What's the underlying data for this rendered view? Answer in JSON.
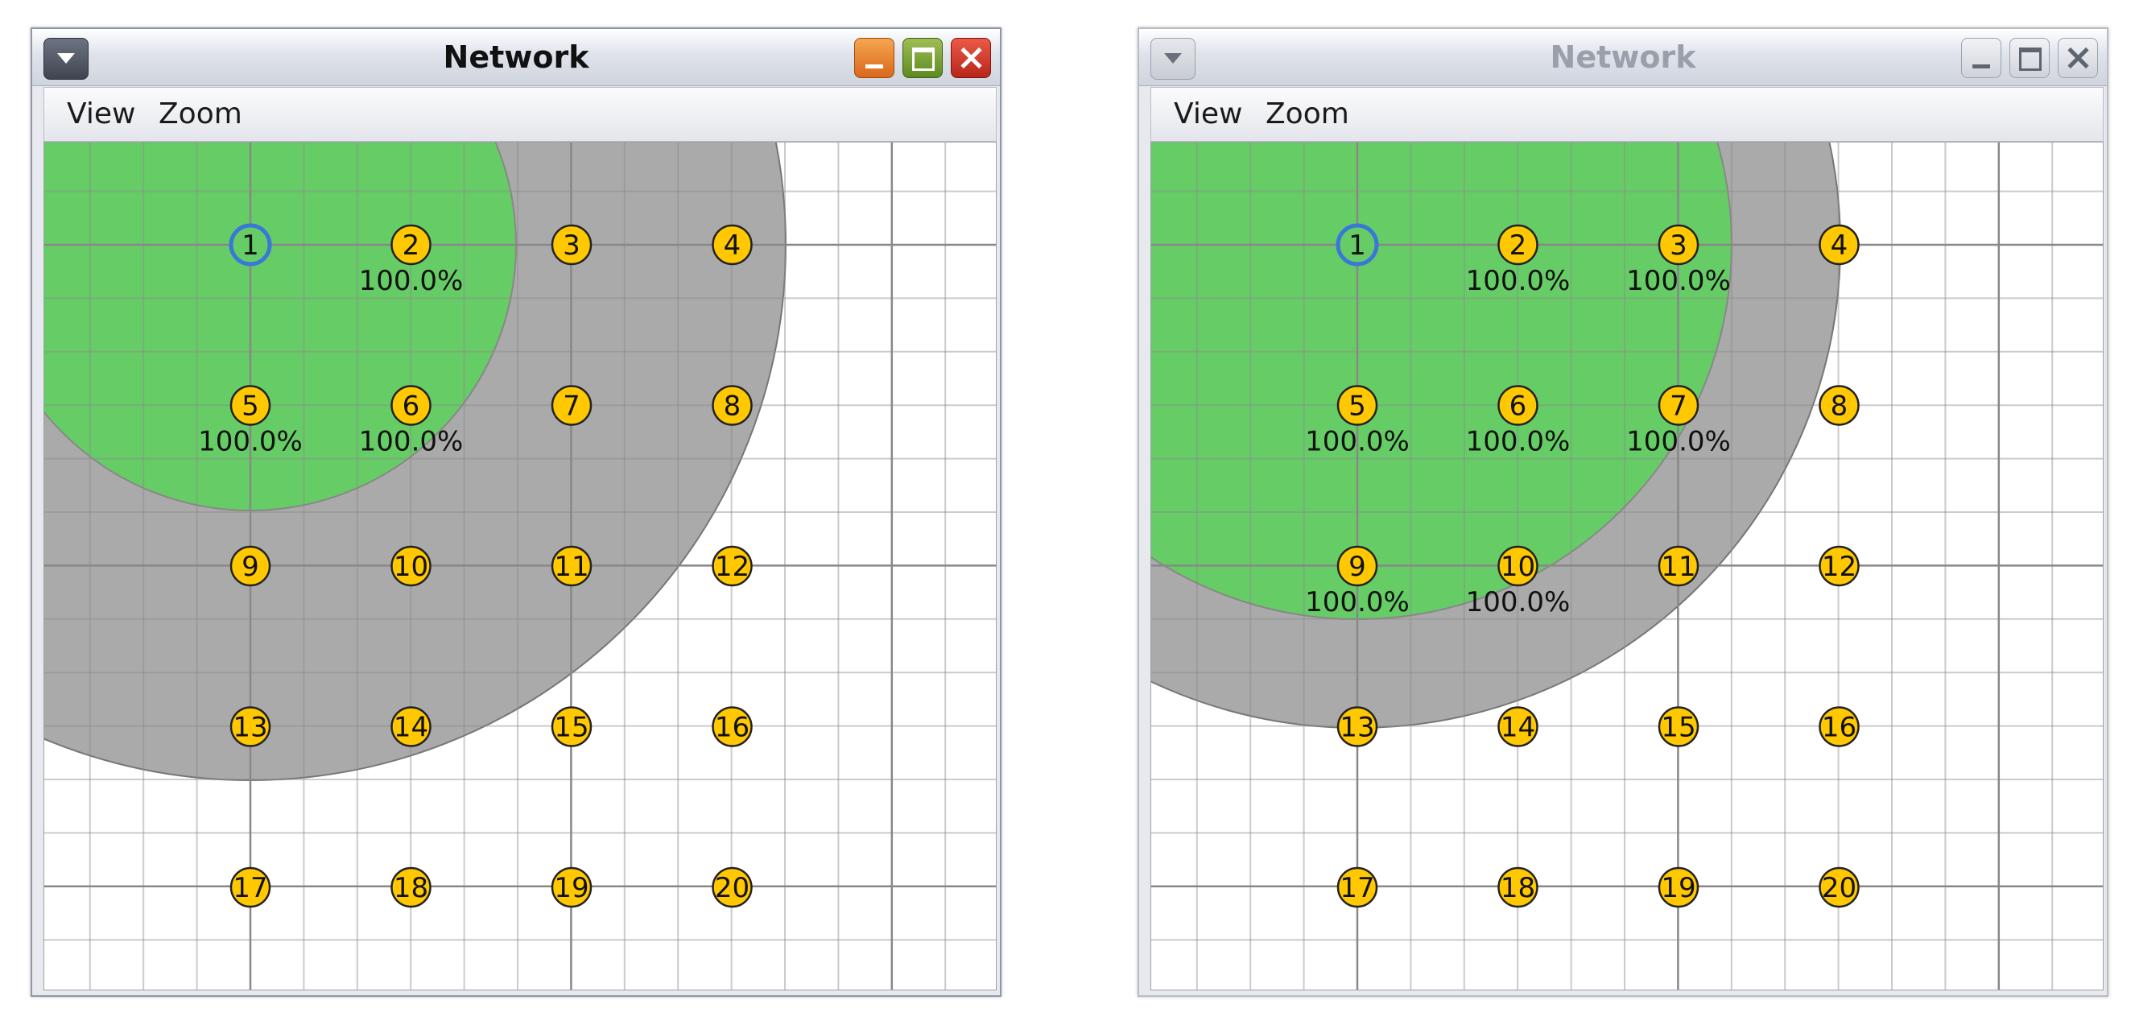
{
  "windows": [
    {
      "title": "Network",
      "active": true,
      "menu": [
        "View",
        "Zoom"
      ],
      "highlighted_node": "1",
      "nodes": [
        "1",
        "2",
        "3",
        "4",
        "5",
        "6",
        "7",
        "8",
        "9",
        "10",
        "11",
        "12",
        "13",
        "14",
        "15",
        "16",
        "17",
        "18",
        "19",
        "20"
      ],
      "labels": [
        {
          "node": "2",
          "text": "100.0%"
        },
        {
          "node": "5",
          "text": "100.0%"
        },
        {
          "node": "6",
          "text": "100.0%"
        }
      ]
    },
    {
      "title": "Network",
      "active": false,
      "menu": [
        "View",
        "Zoom"
      ],
      "highlighted_node": "1",
      "nodes": [
        "1",
        "2",
        "3",
        "4",
        "5",
        "6",
        "7",
        "8",
        "9",
        "10",
        "11",
        "12",
        "13",
        "14",
        "15",
        "16",
        "17",
        "18",
        "19",
        "20"
      ],
      "labels": [
        {
          "node": "2",
          "text": "100.0%"
        },
        {
          "node": "3",
          "text": "100.0%"
        },
        {
          "node": "5",
          "text": "100.0%"
        },
        {
          "node": "6",
          "text": "100.0%"
        },
        {
          "node": "7",
          "text": "100.0%"
        },
        {
          "node": "9",
          "text": "100.0%"
        },
        {
          "node": "10",
          "text": "100.0%"
        }
      ]
    }
  ],
  "colors": {
    "green_range": "#66cc66",
    "gray_range": "#aaaaaa",
    "node_fill": "#ffc800",
    "node_border": "#222222",
    "selected_border": "#3a78d8",
    "grid_minor": "#c8c8c8",
    "grid_major": "#888888"
  }
}
